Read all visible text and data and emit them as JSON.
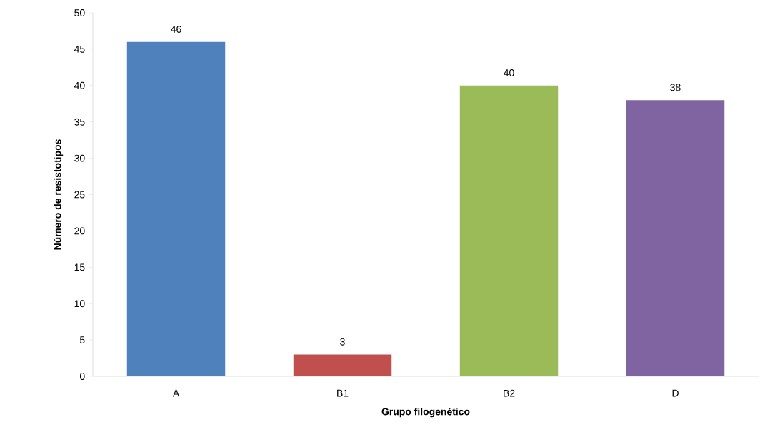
{
  "chart_data": {
    "type": "bar",
    "xlabel": "Grupo filogenético",
    "ylabel": "Número de resistotipos",
    "categories": [
      "A",
      "B1",
      "B2",
      "D"
    ],
    "values": [
      46,
      3,
      40,
      38
    ],
    "colors": [
      "#4f81bd",
      "#c0504d",
      "#9bbb59",
      "#8064a2"
    ],
    "ylim": [
      0,
      50
    ],
    "yticks": [
      0,
      5,
      10,
      15,
      20,
      25,
      30,
      35,
      40,
      45,
      50
    ],
    "data_labels": true,
    "grid": false
  }
}
